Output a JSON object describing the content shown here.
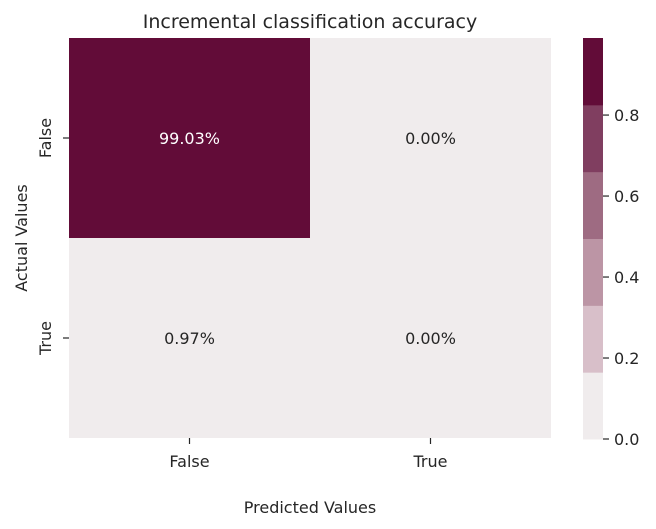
{
  "chart_data": {
    "type": "heatmap",
    "title": "Incremental classification accuracy",
    "xlabel": "Predicted Values",
    "ylabel": "Actual Values",
    "x_categories": [
      "False",
      "True"
    ],
    "y_categories": [
      "False",
      "True"
    ],
    "values": [
      [
        0.9903,
        0.0
      ],
      [
        0.0097,
        0.0
      ]
    ],
    "cell_labels": [
      [
        "99.03%",
        "0.00%"
      ],
      [
        "0.97%",
        "0.00%"
      ]
    ],
    "colorbar": {
      "range": [
        0.0,
        0.9903
      ],
      "ticks": [
        0.0,
        0.2,
        0.4,
        0.6,
        0.8
      ],
      "tick_labels": [
        "0.0",
        "0.2",
        "0.4",
        "0.6",
        "0.8"
      ],
      "levels": [
        "#f0eced",
        "#d8bfc9",
        "#bc95a5",
        "#9e6b82",
        "#803e60",
        "#620c38"
      ]
    },
    "grid": false
  }
}
